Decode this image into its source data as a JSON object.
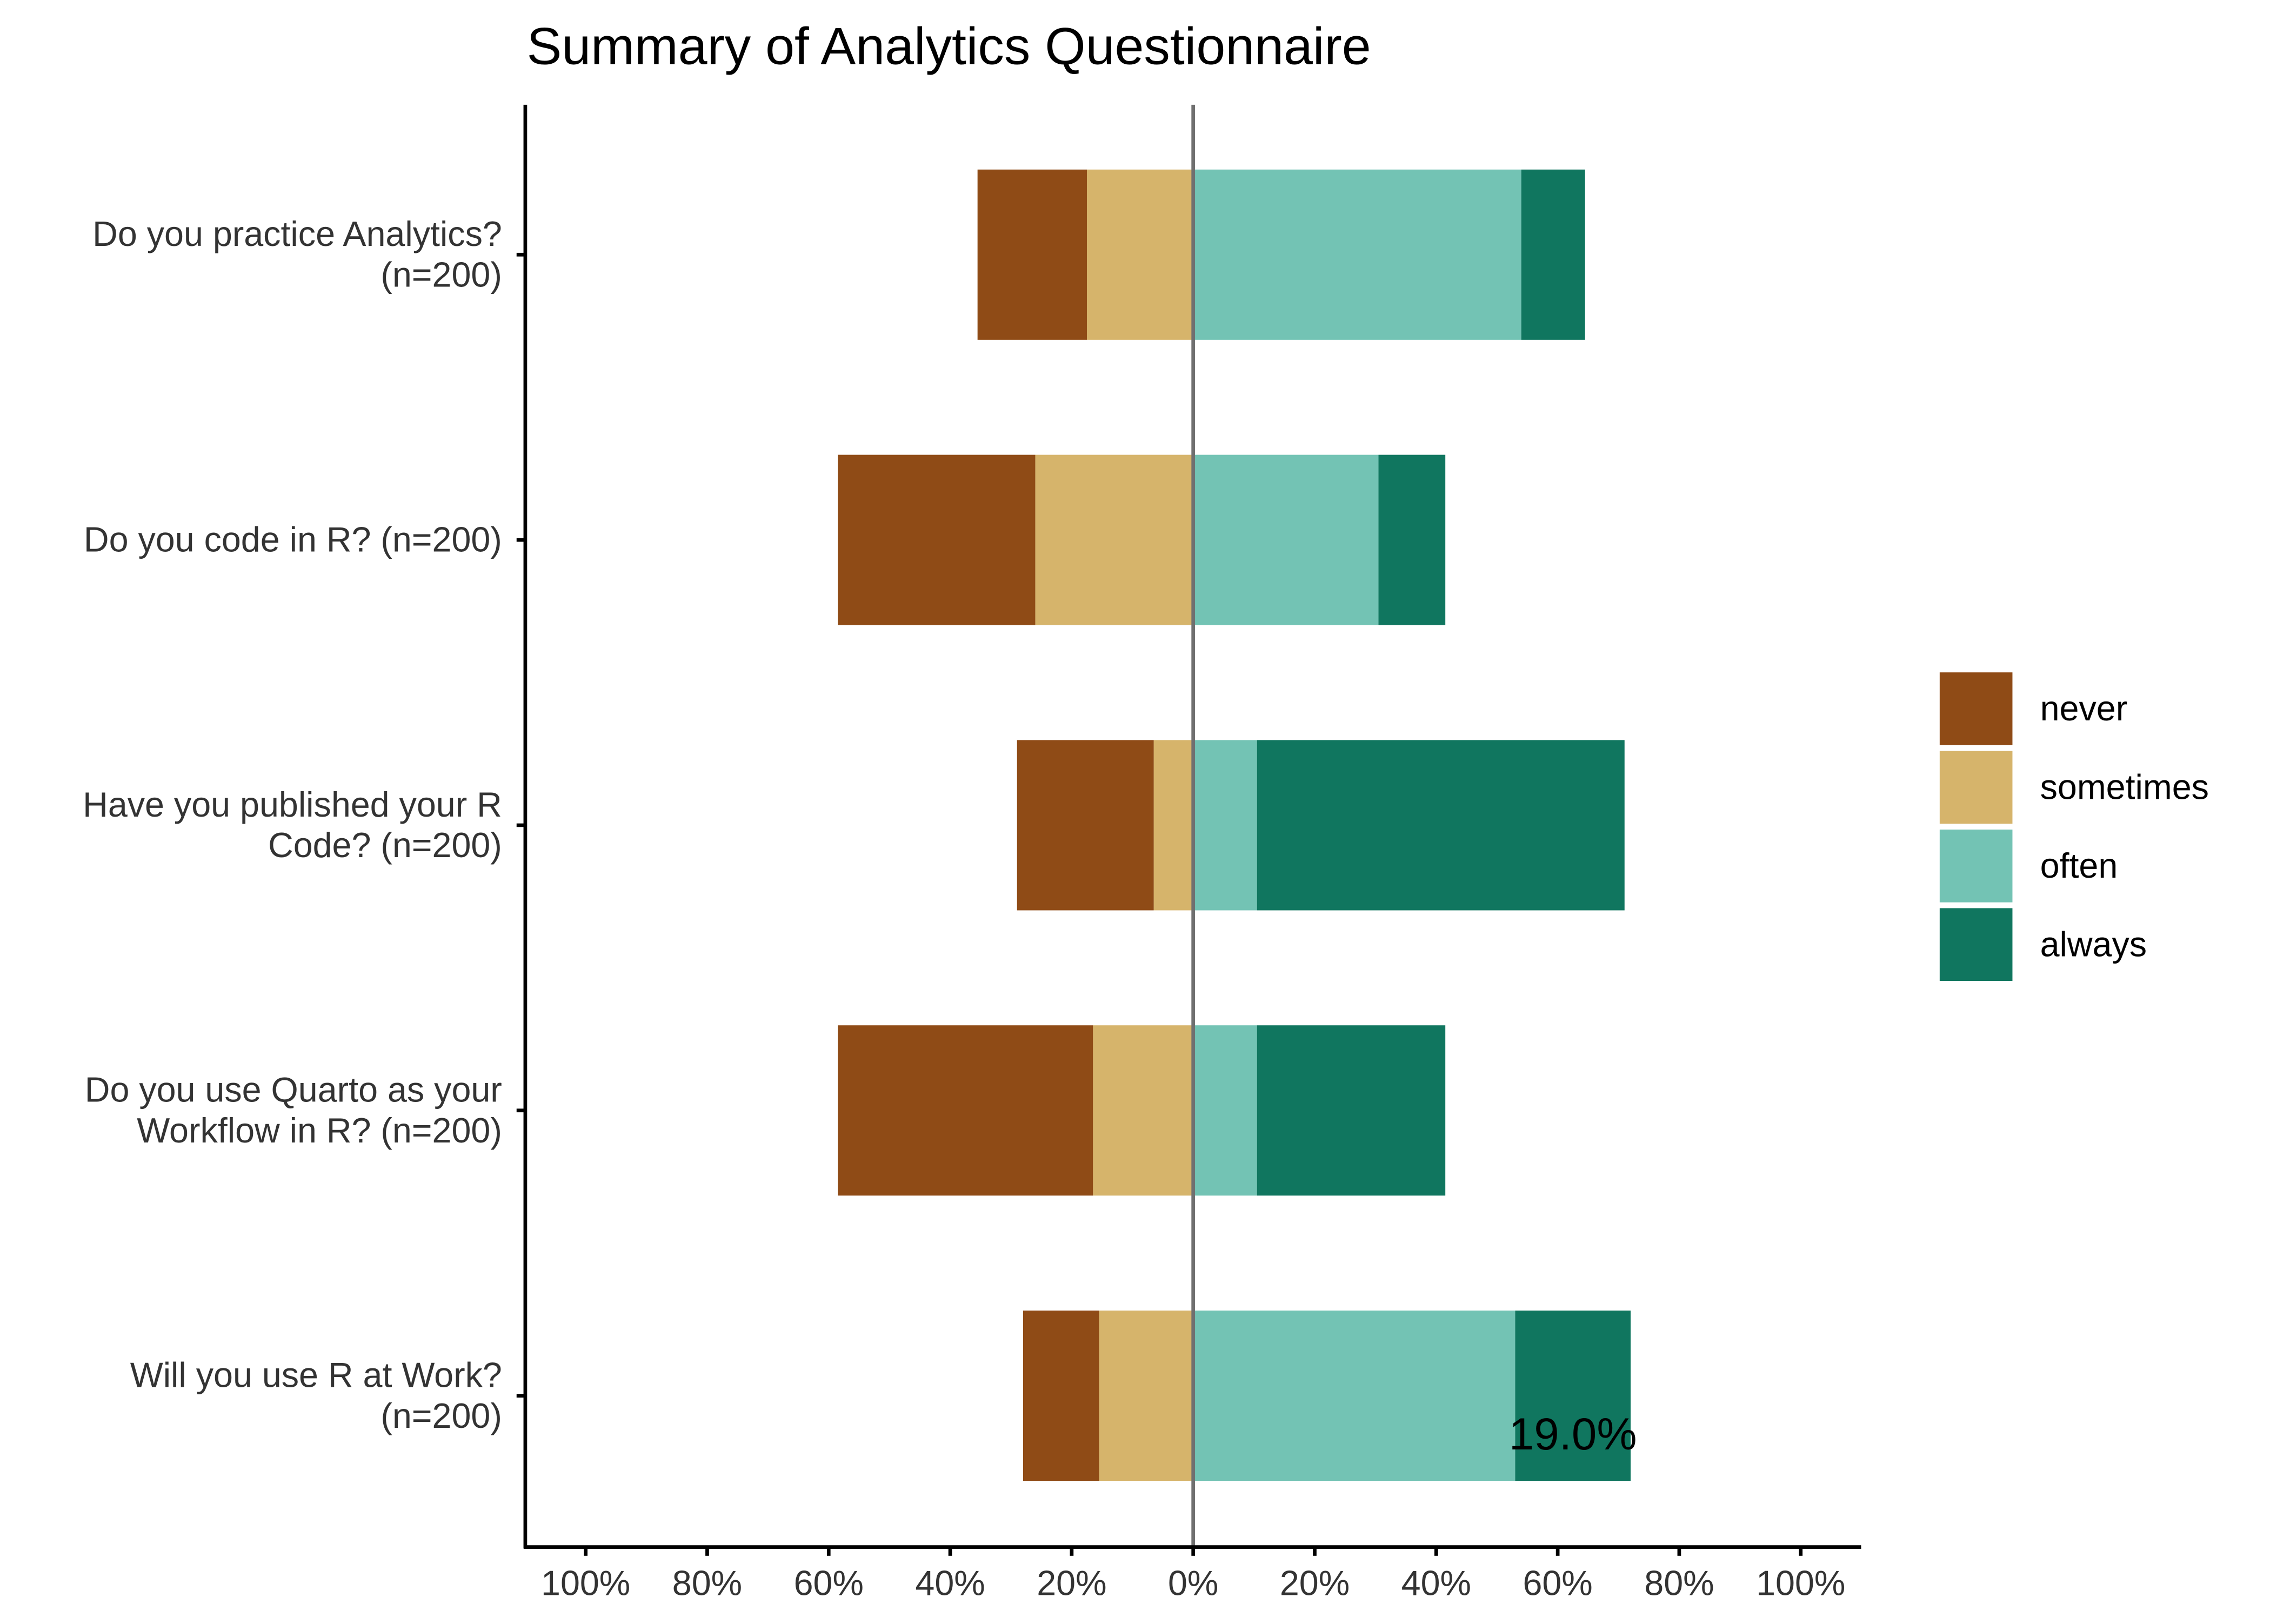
{
  "chart_data": {
    "type": "bar",
    "orientation": "horizontal",
    "stacking": "diverging",
    "title": "Summary of Analytics Questionnaire",
    "categories": [
      "Do you practice Analytics? (n=200)",
      "Do you code in R? (n=200)",
      "Have you published your R Code? (n=200)",
      "Do you use Quarto as your Workflow in R? (n=200)",
      "Will you use R at Work? (n=200)"
    ],
    "category_label_lines": [
      [
        "Do you practice Analytics?",
        "(n=200)"
      ],
      [
        "Do you code in R? (n=200)"
      ],
      [
        "Have you published your R",
        "Code? (n=200)"
      ],
      [
        "Do you use Quarto as your",
        "Workflow in R? (n=200)"
      ],
      [
        "Will you use R at Work?",
        "(n=200)"
      ]
    ],
    "series": [
      {
        "name": "never",
        "color": "#8f4b16",
        "values": [
          18.0,
          32.5,
          22.5,
          42.0,
          12.5
        ]
      },
      {
        "name": "sometimes",
        "color": "#d6b46b",
        "values": [
          17.5,
          26.0,
          6.5,
          16.5,
          15.5
        ]
      },
      {
        "name": "often",
        "color": "#73c3b4",
        "values": [
          54.0,
          30.5,
          10.5,
          10.5,
          53.0
        ]
      },
      {
        "name": "always",
        "color": "#10765f",
        "values": [
          10.5,
          11.0,
          60.5,
          31.0,
          19.0
        ]
      }
    ],
    "negative_series": [
      "never",
      "sometimes"
    ],
    "positive_series": [
      "often",
      "always"
    ],
    "xlim": [
      -100,
      100
    ],
    "xticks": [
      -100,
      -80,
      -60,
      -40,
      -20,
      0,
      20,
      40,
      60,
      80,
      100
    ],
    "xtick_labels": [
      "100%",
      "80%",
      "60%",
      "40%",
      "20%",
      "0%",
      "20%",
      "40%",
      "60%",
      "80%",
      "100%"
    ],
    "xlabel": "",
    "ylabel": "",
    "legend_position": "right",
    "grid": false,
    "annotations": [
      {
        "text": "19.0%",
        "category_index": 4,
        "series": "always"
      }
    ]
  }
}
